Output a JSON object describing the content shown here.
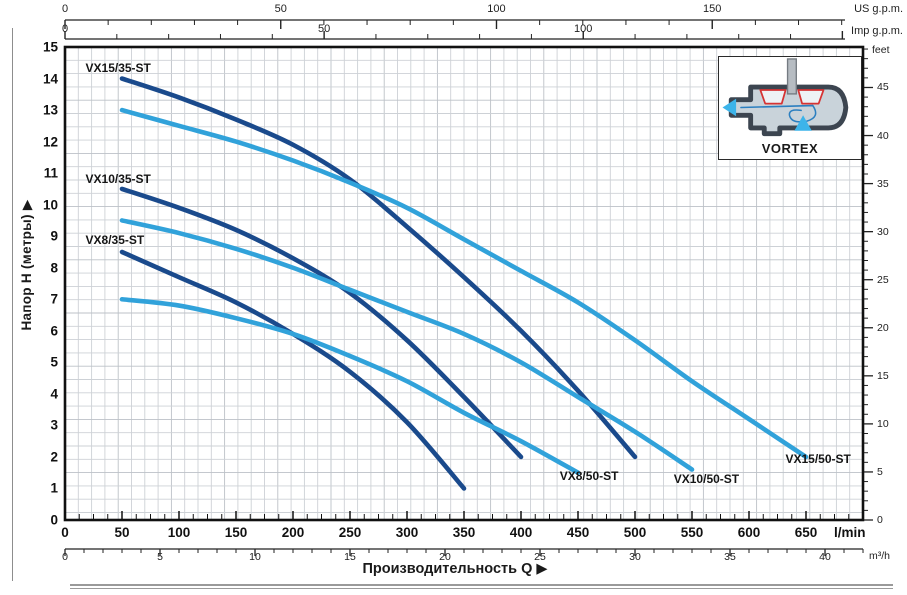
{
  "colors": {
    "dark_blue": "#1a4a8c",
    "light_blue": "#31a2da",
    "grid": "#cdd1d6",
    "grid_major": "#bcc1c7",
    "frame": "#111111"
  },
  "inset": {
    "label": "VORTEX"
  },
  "chart_data": {
    "type": "line",
    "xlabel": "Производительность Q  ▶",
    "ylabel": "Напор H (метры)  ▶",
    "x_axis_lmin": {
      "unit": "l/min",
      "min": 0,
      "max": 700,
      "ticks": [
        0,
        50,
        100,
        150,
        200,
        250,
        300,
        350,
        400,
        450,
        500,
        550,
        600,
        650
      ],
      "minor_step": 12.5
    },
    "x_axis_m3h": {
      "unit": "m³/h",
      "factor_to_lmin": 16.667,
      "ticks": [
        0,
        5,
        10,
        15,
        20,
        25,
        30,
        35,
        40
      ],
      "minor_step": 1,
      "minor_max": 42
    },
    "x_axis_usgpm": {
      "unit": "US g.p.m.",
      "factor_to_lmin": 3.785,
      "ticks": [
        0,
        50,
        100,
        150
      ],
      "minor_step": 10,
      "minor_max": 180
    },
    "x_axis_impgpm": {
      "unit": "Imp g.p.m.",
      "factor_to_lmin": 4.546,
      "ticks": [
        0,
        50,
        100
      ],
      "minor_step": 10,
      "minor_max": 150
    },
    "y_axis_m": {
      "unit": "метры",
      "min": 0,
      "max": 15,
      "ticks": [
        0,
        1,
        2,
        3,
        4,
        5,
        6,
        7,
        8,
        9,
        10,
        11,
        12,
        13,
        14,
        15
      ]
    },
    "y_axis_feet": {
      "unit": "feet",
      "factor_to_m": 0.3048,
      "ticks": [
        0,
        5,
        10,
        15,
        20,
        25,
        30,
        35,
        40,
        45
      ],
      "minor_step": 1,
      "minor_max": 49
    },
    "grid": "fine graph paper, square cells",
    "legend_position": "labels on curves",
    "series": [
      {
        "name": "VX15/35-ST",
        "color": "dark_blue",
        "label_anchor_qh": [
          18,
          14.55
        ],
        "points_lmin_m": [
          [
            50,
            14.0
          ],
          [
            100,
            13.4
          ],
          [
            150,
            12.7
          ],
          [
            200,
            11.9
          ],
          [
            250,
            10.8
          ],
          [
            300,
            9.3
          ],
          [
            350,
            7.7
          ],
          [
            400,
            6.0
          ],
          [
            450,
            4.1
          ],
          [
            500,
            2.0
          ]
        ]
      },
      {
        "name": "VX15/50-ST",
        "color": "light_blue",
        "label_anchor_qh": [
          632,
          2.15
        ],
        "points_lmin_m": [
          [
            50,
            13.0
          ],
          [
            100,
            12.5
          ],
          [
            150,
            12.0
          ],
          [
            200,
            11.4
          ],
          [
            250,
            10.7
          ],
          [
            300,
            9.9
          ],
          [
            350,
            8.9
          ],
          [
            400,
            7.9
          ],
          [
            450,
            6.9
          ],
          [
            500,
            5.7
          ],
          [
            550,
            4.4
          ],
          [
            600,
            3.2
          ],
          [
            650,
            2.0
          ]
        ]
      },
      {
        "name": "VX10/35-ST",
        "color": "dark_blue",
        "label_anchor_qh": [
          18,
          11.05
        ],
        "points_lmin_m": [
          [
            50,
            10.5
          ],
          [
            100,
            9.9
          ],
          [
            150,
            9.2
          ],
          [
            200,
            8.3
          ],
          [
            250,
            7.2
          ],
          [
            300,
            5.7
          ],
          [
            350,
            3.9
          ],
          [
            400,
            2.0
          ]
        ]
      },
      {
        "name": "VX10/50-ST",
        "color": "light_blue",
        "label_anchor_qh": [
          534,
          1.52
        ],
        "points_lmin_m": [
          [
            50,
            9.5
          ],
          [
            100,
            9.1
          ],
          [
            150,
            8.6
          ],
          [
            200,
            8.0
          ],
          [
            250,
            7.3
          ],
          [
            300,
            6.6
          ],
          [
            350,
            5.9
          ],
          [
            400,
            5.0
          ],
          [
            450,
            3.9
          ],
          [
            500,
            2.8
          ],
          [
            550,
            1.6
          ]
        ]
      },
      {
        "name": "VX8/35-ST",
        "color": "dark_blue",
        "label_anchor_qh": [
          18,
          9.1
        ],
        "points_lmin_m": [
          [
            50,
            8.5
          ],
          [
            100,
            7.7
          ],
          [
            150,
            6.9
          ],
          [
            200,
            5.9
          ],
          [
            250,
            4.7
          ],
          [
            300,
            3.1
          ],
          [
            350,
            1.0
          ]
        ]
      },
      {
        "name": "VX8/50-ST",
        "color": "light_blue",
        "label_anchor_qh": [
          434,
          1.62
        ],
        "points_lmin_m": [
          [
            50,
            7.0
          ],
          [
            100,
            6.8
          ],
          [
            150,
            6.4
          ],
          [
            200,
            5.9
          ],
          [
            250,
            5.2
          ],
          [
            300,
            4.4
          ],
          [
            350,
            3.4
          ],
          [
            400,
            2.5
          ],
          [
            450,
            1.5
          ]
        ]
      }
    ]
  }
}
